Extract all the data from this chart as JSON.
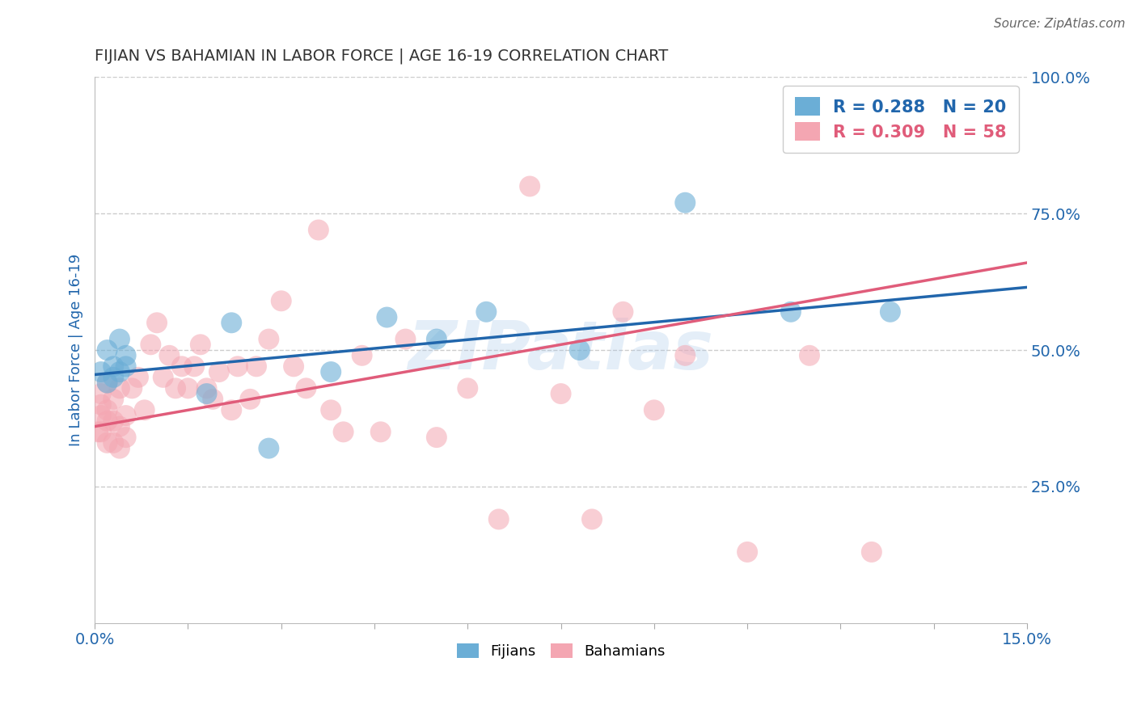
{
  "title": "FIJIAN VS BAHAMIAN IN LABOR FORCE | AGE 16-19 CORRELATION CHART",
  "source_text": "Source: ZipAtlas.com",
  "ylabel": "In Labor Force | Age 16-19",
  "xlim": [
    0.0,
    0.15
  ],
  "ylim": [
    0.0,
    1.0
  ],
  "yticks": [
    0.25,
    0.5,
    0.75,
    1.0
  ],
  "ytick_labels": [
    "25.0%",
    "50.0%",
    "75.0%",
    "100.0%"
  ],
  "xticks": [
    0.0,
    0.015,
    0.03,
    0.045,
    0.06,
    0.075,
    0.09,
    0.105,
    0.12,
    0.135,
    0.15
  ],
  "xtick_labels": [
    "0.0%",
    "",
    "",
    "",
    "",
    "",
    "",
    "",
    "",
    "",
    "15.0%"
  ],
  "fijian_color": "#6baed6",
  "bahamian_color": "#f4a6b2",
  "fijian_line_color": "#2166ac",
  "bahamian_line_color": "#e05c7a",
  "legend_R_fijian": "R = 0.288",
  "legend_N_fijian": "N = 20",
  "legend_R_bahamian": "R = 0.309",
  "legend_N_bahamian": "N = 58",
  "watermark": "ZIPatlas",
  "watermark_color": "#a8c8e8",
  "grid_color": "#cccccc",
  "title_color": "#333333",
  "tick_label_color": "#2166ac",
  "background_color": "#ffffff",
  "fijian_x": [
    0.001,
    0.002,
    0.002,
    0.003,
    0.003,
    0.004,
    0.004,
    0.005,
    0.005,
    0.018,
    0.022,
    0.028,
    0.038,
    0.047,
    0.055,
    0.063,
    0.078,
    0.095,
    0.112,
    0.128
  ],
  "fijian_y": [
    0.46,
    0.5,
    0.44,
    0.47,
    0.45,
    0.46,
    0.52,
    0.47,
    0.49,
    0.42,
    0.55,
    0.32,
    0.46,
    0.56,
    0.52,
    0.57,
    0.5,
    0.77,
    0.57,
    0.57
  ],
  "bahamian_x": [
    0.0005,
    0.001,
    0.001,
    0.001,
    0.001,
    0.002,
    0.002,
    0.002,
    0.002,
    0.003,
    0.003,
    0.003,
    0.004,
    0.004,
    0.004,
    0.005,
    0.005,
    0.006,
    0.007,
    0.008,
    0.009,
    0.01,
    0.011,
    0.012,
    0.013,
    0.014,
    0.015,
    0.016,
    0.017,
    0.018,
    0.019,
    0.02,
    0.022,
    0.023,
    0.025,
    0.026,
    0.028,
    0.03,
    0.032,
    0.034,
    0.036,
    0.038,
    0.04,
    0.043,
    0.046,
    0.05,
    0.055,
    0.06,
    0.065,
    0.07,
    0.075,
    0.08,
    0.085,
    0.09,
    0.095,
    0.105,
    0.115,
    0.125
  ],
  "bahamian_y": [
    0.35,
    0.38,
    0.35,
    0.4,
    0.42,
    0.33,
    0.37,
    0.39,
    0.44,
    0.33,
    0.37,
    0.41,
    0.32,
    0.36,
    0.43,
    0.34,
    0.38,
    0.43,
    0.45,
    0.39,
    0.51,
    0.55,
    0.45,
    0.49,
    0.43,
    0.47,
    0.43,
    0.47,
    0.51,
    0.43,
    0.41,
    0.46,
    0.39,
    0.47,
    0.41,
    0.47,
    0.52,
    0.59,
    0.47,
    0.43,
    0.72,
    0.39,
    0.35,
    0.49,
    0.35,
    0.52,
    0.34,
    0.43,
    0.19,
    0.8,
    0.42,
    0.19,
    0.57,
    0.39,
    0.49,
    0.13,
    0.49,
    0.13
  ],
  "fijian_trend_x": [
    0.0,
    0.15
  ],
  "fijian_trend_y": [
    0.455,
    0.615
  ],
  "bahamian_trend_x": [
    0.0,
    0.15
  ],
  "bahamian_trend_y": [
    0.36,
    0.66
  ]
}
